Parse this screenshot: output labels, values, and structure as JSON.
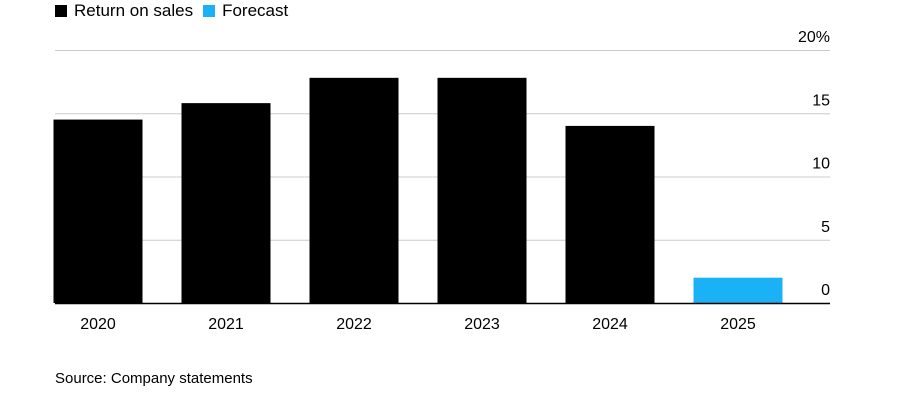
{
  "legend": {
    "items": [
      {
        "label": "Return on sales",
        "color": "#000000"
      },
      {
        "label": "Forecast",
        "color": "#1ab2f5"
      }
    ]
  },
  "source": "Source: Company statements",
  "chart_data": {
    "type": "bar",
    "categories": [
      "2020",
      "2021",
      "2022",
      "2023",
      "2024",
      "2025"
    ],
    "values": [
      14.5,
      15.8,
      17.8,
      17.8,
      14.0,
      2.0
    ],
    "forecast": [
      false,
      false,
      false,
      false,
      false,
      true
    ],
    "series": [
      {
        "name": "Return on sales",
        "color": "#000000"
      },
      {
        "name": "Forecast",
        "color": "#1ab2f5"
      }
    ],
    "ylim": [
      0,
      20
    ],
    "yticks": [
      0,
      5,
      10,
      15,
      20
    ],
    "ytick_labels": [
      "0",
      "5",
      "10",
      "15",
      "20%"
    ],
    "yaxis_position": "right",
    "grid": true,
    "legend_position": "top-left",
    "gridline_color": "#cccccc",
    "axis_color": "#000000"
  }
}
